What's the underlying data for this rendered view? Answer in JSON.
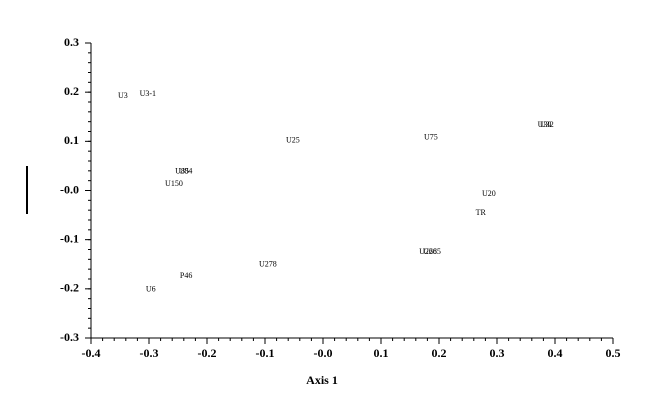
{
  "chart_data": {
    "type": "scatter",
    "x_label": "Axis 1",
    "labels": [
      "U3",
      "U3-1",
      "U25",
      "U75",
      "U30",
      "U32",
      "U85",
      "U84",
      "U150",
      "U20",
      "TR",
      "U266",
      "U285",
      "U278",
      "P46",
      "U6"
    ],
    "x": [
      -0.345,
      -0.302,
      -0.052,
      0.186,
      0.382,
      0.386,
      -0.243,
      -0.237,
      -0.257,
      0.286,
      0.272,
      0.181,
      0.188,
      -0.095,
      -0.236,
      -0.297
    ],
    "values": [
      0.192,
      0.196,
      0.101,
      0.107,
      0.133,
      0.133,
      0.038,
      0.038,
      0.013,
      -0.007,
      -0.046,
      -0.125,
      -0.125,
      -0.151,
      -0.174,
      -0.202
    ],
    "xlim": [
      -0.4,
      0.5
    ],
    "xticks": [
      -0.4,
      -0.3,
      -0.2,
      -0.1,
      {
        "value": 0,
        "label": "-0.0"
      },
      0.1,
      0.2,
      0.3,
      0.4,
      0.5
    ],
    "ylim": [
      -0.3,
      0.3
    ],
    "yticks": [
      -0.3,
      -0.2,
      -0.1,
      {
        "value": 0,
        "label": "-0.0"
      },
      0.1,
      0.2,
      0.3
    ]
  }
}
